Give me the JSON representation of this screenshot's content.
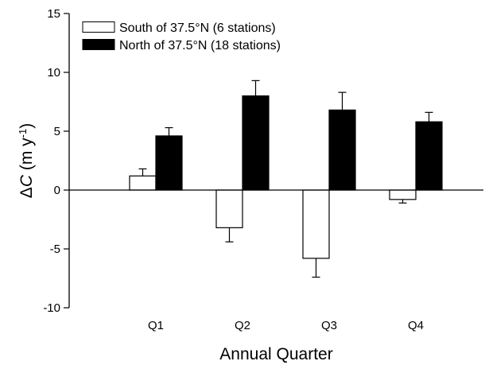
{
  "chart_data": {
    "type": "bar",
    "title": "",
    "xlabel": "Annual Quarter",
    "ylabel": {
      "prefix": "Δ",
      "symbol": "C",
      "unit": " (m y",
      "exponent": "-1",
      "close": ")"
    },
    "categories": [
      "Q1",
      "Q2",
      "Q3",
      "Q4"
    ],
    "ylim": [
      -10,
      15
    ],
    "yticks": [
      -10,
      -5,
      0,
      5,
      10,
      15
    ],
    "grid": false,
    "legend_position": "top-left",
    "series": [
      {
        "name": "South of 37.5°N (6 stations)",
        "color": "#ffffff",
        "values": [
          1.2,
          -3.2,
          -5.8,
          -0.8
        ],
        "error": [
          0.6,
          1.2,
          1.6,
          0.3
        ]
      },
      {
        "name": "North of 37.5°N (18 stations)",
        "color": "#000000",
        "values": [
          4.6,
          8.0,
          6.8,
          5.8
        ],
        "error": [
          0.7,
          1.3,
          1.5,
          0.8
        ]
      }
    ]
  }
}
